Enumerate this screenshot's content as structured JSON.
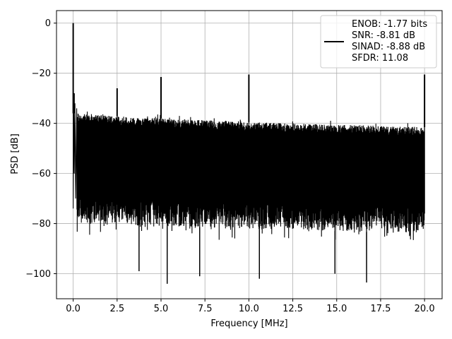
{
  "chart_data": {
    "type": "line",
    "title": "",
    "xlabel": "Frequency [MHz]",
    "ylabel": "PSD [dB]",
    "xlim": [
      -0.95,
      21.0
    ],
    "ylim": [
      -110,
      5
    ],
    "xticks": [
      0.0,
      2.5,
      5.0,
      7.5,
      10.0,
      12.5,
      15.0,
      17.5,
      20.0
    ],
    "xtick_labels": [
      "0.0",
      "2.5",
      "5.0",
      "7.5",
      "10.0",
      "12.5",
      "15.0",
      "17.5",
      "20.0"
    ],
    "yticks": [
      0,
      -20,
      -40,
      -60,
      -80,
      -100
    ],
    "ytick_labels": [
      "0",
      "−20",
      "−40",
      "−60",
      "−80",
      "−100"
    ],
    "grid": true,
    "legend_position": "top-right",
    "series": [
      {
        "color": "#000000",
        "x_range_mhz": [
          0.0,
          20.0
        ],
        "noise_floor_upper_db": {
          "x": [
            0.1,
            2.0,
            5.0,
            10.0,
            15.0,
            20.0
          ],
          "y": [
            -36,
            -37,
            -38,
            -39.5,
            -40.5,
            -41.5
          ]
        },
        "noise_floor_lower_db": {
          "x": [
            0.1,
            5.0,
            10.0,
            15.0,
            20.0
          ],
          "y": [
            -80,
            -81,
            -82,
            -83,
            -84
          ]
        },
        "peaks": [
          {
            "x": 0.0,
            "y": 0
          },
          {
            "x": 0.05,
            "y": -28
          },
          {
            "x": 2.5,
            "y": -26
          },
          {
            "x": 5.0,
            "y": -21.5
          },
          {
            "x": 10.0,
            "y": -20.5
          },
          {
            "x": 20.0,
            "y": -20.5
          }
        ],
        "deep_minima": [
          {
            "x": 3.75,
            "y": -99
          },
          {
            "x": 5.35,
            "y": -104
          },
          {
            "x": 7.2,
            "y": -101
          },
          {
            "x": 10.6,
            "y": -102
          },
          {
            "x": 14.9,
            "y": -100
          },
          {
            "x": 16.7,
            "y": -103.5
          }
        ]
      }
    ],
    "legend": {
      "lines": [
        "ENOB: -1.77 bits",
        "SNR: -8.81 dB",
        "SINAD: -8.88 dB",
        "SFDR: 11.08"
      ]
    }
  }
}
